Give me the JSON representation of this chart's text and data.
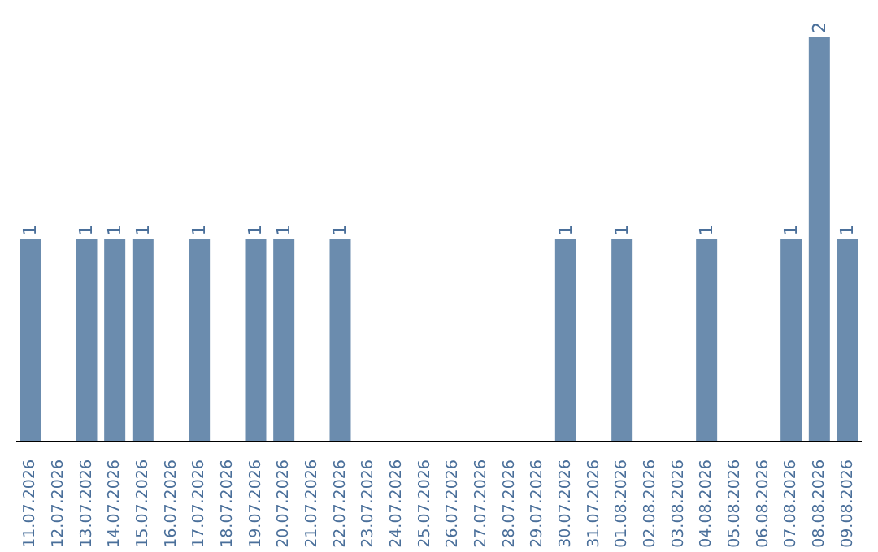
{
  "chart_data": {
    "type": "bar",
    "categories": [
      "11.07.2026",
      "12.07.2026",
      "13.07.2026",
      "14.07.2026",
      "15.07.2026",
      "16.07.2026",
      "17.07.2026",
      "18.07.2026",
      "19.07.2026",
      "20.07.2026",
      "21.07.2026",
      "22.07.2026",
      "23.07.2026",
      "24.07.2026",
      "25.07.2026",
      "26.07.2026",
      "27.07.2026",
      "28.07.2026",
      "29.07.2026",
      "30.07.2026",
      "31.07.2026",
      "01.08.2026",
      "02.08.2026",
      "03.08.2026",
      "04.08.2026",
      "05.08.2026",
      "06.08.2026",
      "07.08.2026",
      "08.08.2026",
      "09.08.2026"
    ],
    "values": [
      1,
      0,
      1,
      1,
      1,
      0,
      1,
      0,
      1,
      1,
      0,
      1,
      0,
      0,
      0,
      0,
      0,
      0,
      0,
      1,
      0,
      1,
      0,
      0,
      1,
      0,
      0,
      1,
      2,
      1
    ],
    "value_labels": [
      "1",
      null,
      "1",
      "1",
      "1",
      null,
      "1",
      null,
      "1",
      "1",
      null,
      "1",
      null,
      null,
      null,
      null,
      null,
      null,
      null,
      "1",
      null,
      "1",
      null,
      null,
      "1",
      null,
      null,
      "1",
      "2",
      "1"
    ],
    "color": "#6b8cae",
    "tick_labels": "x"
  }
}
